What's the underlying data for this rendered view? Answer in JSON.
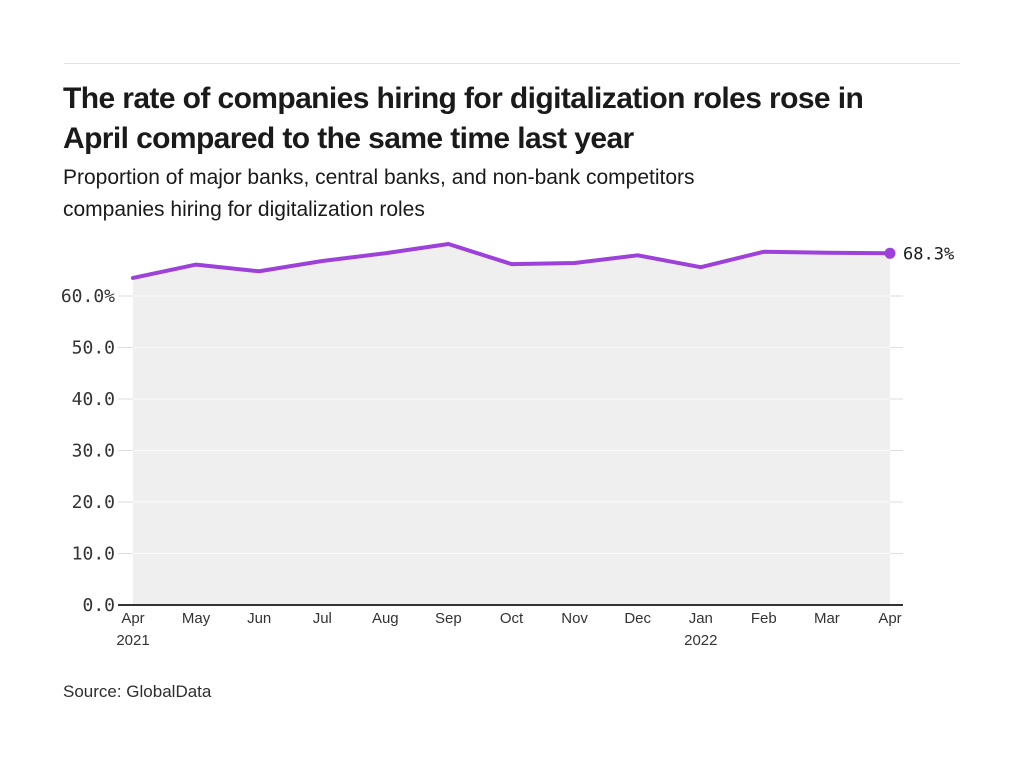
{
  "header": {
    "title_lines": [
      "The rate of companies hiring for digitalization roles rose in",
      "April compared to the same time last year"
    ],
    "subtitle_lines": [
      "Proportion of major banks, central banks, and non-bank competitors",
      "companies hiring for digitalization roles"
    ]
  },
  "footer": {
    "source": "Source: GlobalData"
  },
  "chart_data": {
    "type": "area",
    "title": "The rate of companies hiring for digitalization roles rose in April compared to the same time last year",
    "subtitle": "Proportion of major banks, central banks, and non-bank competitors companies hiring for digitalization roles",
    "xlabel": "",
    "ylabel": "",
    "categories": [
      "Apr 2021",
      "May",
      "Jun",
      "Jul",
      "Aug",
      "Sep",
      "Oct",
      "Nov",
      "Dec",
      "Jan 2022",
      "Feb",
      "Mar",
      "Apr 2022"
    ],
    "values": [
      63.5,
      66.1,
      64.8,
      66.8,
      68.3,
      70.1,
      66.2,
      66.4,
      67.9,
      65.6,
      68.6,
      68.4,
      68.3
    ],
    "end_point_label": "68.3%",
    "x_ticks": [
      {
        "label": "Apr",
        "sublabel": "2021"
      },
      {
        "label": "May"
      },
      {
        "label": "Jun"
      },
      {
        "label": "Jul"
      },
      {
        "label": "Aug"
      },
      {
        "label": "Sep"
      },
      {
        "label": "Oct"
      },
      {
        "label": "Nov"
      },
      {
        "label": "Dec"
      },
      {
        "label": "Jan",
        "sublabel": "2022"
      },
      {
        "label": "Feb"
      },
      {
        "label": "Mar"
      },
      {
        "label": "Apr"
      }
    ],
    "y_ticks": [
      {
        "value": 0,
        "label": "0.0"
      },
      {
        "value": 10,
        "label": "10.0"
      },
      {
        "value": 20,
        "label": "20.0"
      },
      {
        "value": 30,
        "label": "30.0"
      },
      {
        "value": 40,
        "label": "40.0"
      },
      {
        "value": 50,
        "label": "50.0"
      },
      {
        "value": 60,
        "label": "60.0%"
      }
    ],
    "ylim": [
      0,
      60
    ],
    "grid": true,
    "legend": "none",
    "colors": {
      "line": "#9d41db",
      "area_fill": "#efefef",
      "grid_outside": "#dedede",
      "grid_inside": "#fbfbfb",
      "baseline": "#333333",
      "tick_text": "#333333",
      "end_label_text": "#1a1a1a"
    }
  }
}
